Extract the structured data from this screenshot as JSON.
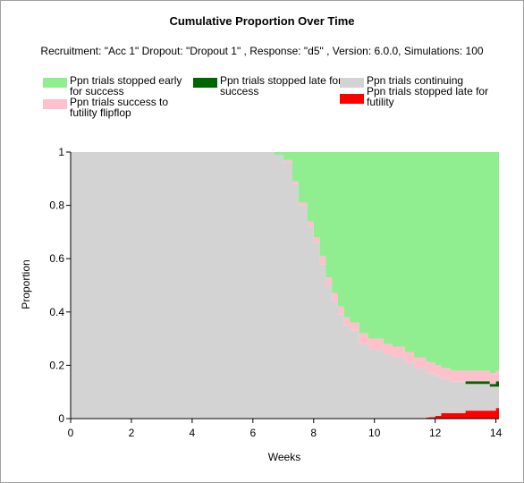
{
  "chart_data": {
    "type": "area",
    "stacking": "stacked-proportion",
    "title": "Cumulative Proportion Over Time",
    "subtitle": "Recruitment: \"Acc 1\" Dropout: \"Dropout 1\" , Response: \"d5\" , Version: 6.0.0, Simulations: 100",
    "xlabel": "Weeks",
    "ylabel": "Proportion",
    "xlim": [
      0,
      14.1
    ],
    "ylim": [
      0,
      1
    ],
    "x_ticks": [
      "0",
      "2",
      "4",
      "6",
      "8",
      "10",
      "12",
      "14"
    ],
    "y_ticks": [
      "0",
      "0.2",
      "0.4",
      "0.6",
      "0.8",
      "1"
    ],
    "legend_position": "top",
    "legend": [
      {
        "key": "early_success",
        "label": "Ppn trials stopped early for success",
        "color": "#90ee90"
      },
      {
        "key": "late_success",
        "label": "Ppn trials stopped late for success",
        "color": "#006400"
      },
      {
        "key": "continuing",
        "label": "Ppn trials continuing",
        "color": "#d3d3d3"
      },
      {
        "key": "flipflop",
        "label": "Ppn trials success to futility flipflop",
        "color": "#ffc0cb"
      },
      {
        "key": "late_futility",
        "label": "Ppn trials stopped late for futility",
        "color": "#ff0000"
      }
    ],
    "x": [
      0,
      6.5,
      6.7,
      7.0,
      7.3,
      7.5,
      7.8,
      8.0,
      8.2,
      8.4,
      8.6,
      8.8,
      9.0,
      9.2,
      9.5,
      9.8,
      10.0,
      10.3,
      10.6,
      11.0,
      11.3,
      11.7,
      11.8,
      12.0,
      12.2,
      12.5,
      12.8,
      13.0,
      13.3,
      13.6,
      13.8,
      14.0,
      14.1
    ],
    "series": [
      {
        "key": "late_futility",
        "values": [
          0,
          0,
          0,
          0,
          0,
          0,
          0,
          0,
          0,
          0,
          0,
          0,
          0,
          0,
          0,
          0,
          0,
          0,
          0,
          0,
          0,
          0.004,
          0.005,
          0.01,
          0.02,
          0.02,
          0.02,
          0.03,
          0.03,
          0.03,
          0.03,
          0.04,
          0.04
        ]
      },
      {
        "key": "continuing",
        "values": [
          1,
          1,
          0.99,
          0.96,
          0.88,
          0.8,
          0.72,
          0.66,
          0.58,
          0.5,
          0.44,
          0.39,
          0.35,
          0.33,
          0.28,
          0.26,
          0.26,
          0.24,
          0.23,
          0.21,
          0.19,
          0.17,
          0.165,
          0.15,
          0.13,
          0.12,
          0.12,
          0.1,
          0.1,
          0.1,
          0.09,
          0.08,
          0.08
        ]
      },
      {
        "key": "late_success",
        "values": [
          0,
          0,
          0,
          0,
          0,
          0,
          0,
          0,
          0,
          0,
          0,
          0,
          0,
          0,
          0,
          0,
          0,
          0,
          0,
          0,
          0,
          0,
          0,
          0,
          0,
          0,
          0,
          0.01,
          0.01,
          0.01,
          0.01,
          0.02,
          0.02
        ]
      },
      {
        "key": "flipflop",
        "values": [
          0,
          0,
          0,
          0.01,
          0.01,
          0.01,
          0.02,
          0.02,
          0.03,
          0.03,
          0.03,
          0.03,
          0.03,
          0.03,
          0.04,
          0.04,
          0.04,
          0.04,
          0.04,
          0.04,
          0.04,
          0.04,
          0.04,
          0.04,
          0.04,
          0.04,
          0.04,
          0.04,
          0.04,
          0.04,
          0.04,
          0.04,
          0.04
        ]
      },
      {
        "key": "early_success",
        "values": [
          0,
          0,
          0.01,
          0.03,
          0.11,
          0.19,
          0.26,
          0.32,
          0.39,
          0.47,
          0.53,
          0.58,
          0.62,
          0.64,
          0.68,
          0.7,
          0.7,
          0.72,
          0.73,
          0.75,
          0.77,
          0.786,
          0.79,
          0.8,
          0.81,
          0.82,
          0.82,
          0.82,
          0.82,
          0.82,
          0.83,
          0.82,
          0.82
        ]
      }
    ]
  }
}
